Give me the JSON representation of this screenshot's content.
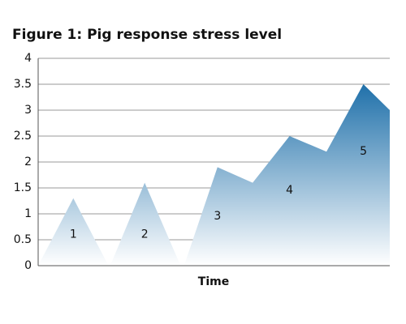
{
  "chart_data": {
    "type": "area",
    "title": "Figure 1:  Pig response stress level",
    "x_label": "Time",
    "x": [
      0,
      1,
      2,
      2.03,
      2.05,
      3.03,
      4.05,
      4.1,
      4.15,
      5.1,
      6.1,
      7.15,
      8.2,
      9.25,
      10
    ],
    "values": [
      0,
      1.3,
      0,
      null,
      0,
      1.6,
      0,
      null,
      0,
      1.9,
      1.6,
      2.5,
      2.2,
      3.5,
      3.0
    ],
    "color_top": "#005c9e",
    "color_bottom": "#ffffff",
    "xlim": [
      0,
      10
    ],
    "ylim": [
      0,
      4
    ],
    "yticks": [
      0,
      0.5,
      1,
      1.5,
      2,
      2.5,
      3,
      3.5,
      4
    ],
    "grid": true,
    "annotations": [
      {
        "text": "1",
        "x": 1,
        "y": 0.6
      },
      {
        "text": "2",
        "x": 3.03,
        "y": 0.6
      },
      {
        "text": "3",
        "x": 5.1,
        "y": 0.95
      },
      {
        "text": "4",
        "x": 7.15,
        "y": 1.45
      },
      {
        "text": "5",
        "x": 9.25,
        "y": 2.2
      }
    ]
  }
}
